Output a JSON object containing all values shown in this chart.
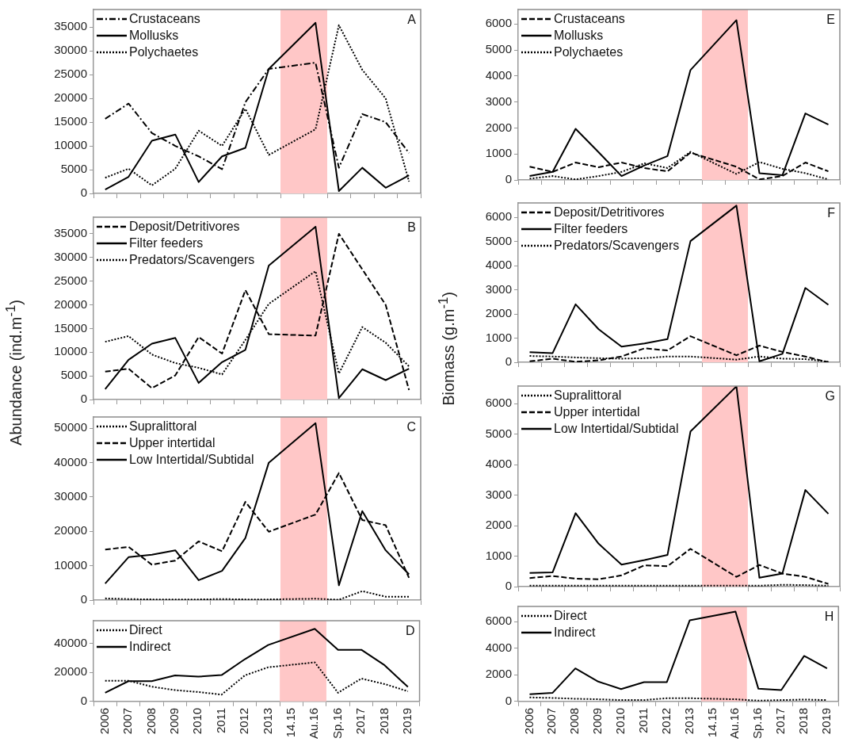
{
  "chart_data": [
    {
      "type": "line",
      "title": "A",
      "categories": [
        "2006",
        "2007",
        "2008",
        "2009",
        "2010",
        "2011",
        "2012",
        "2013",
        "14.15",
        "Au.16",
        "Sp.16",
        "2017",
        "2018",
        "2019"
      ],
      "series": [
        {
          "name": "Crustaceans",
          "color": "#000000",
          "line_style": "dashdot",
          "values": [
            15700,
            18900,
            12700,
            10000,
            7800,
            5100,
            19200,
            26200,
            null,
            27500,
            5400,
            16700,
            15000,
            8500
          ]
        },
        {
          "name": "Mollusks",
          "color": "#000000",
          "line_style": "solid",
          "values": [
            800,
            3500,
            11100,
            12400,
            2400,
            7800,
            9600,
            26200,
            null,
            35900,
            500,
            5400,
            1200,
            3800
          ]
        },
        {
          "name": "Polychaetes",
          "color": "#000000",
          "line_style": "dotted",
          "values": [
            3300,
            5200,
            1700,
            5200,
            13200,
            10000,
            17800,
            8100,
            null,
            13500,
            35400,
            26000,
            20000,
            2500
          ]
        }
      ],
      "ylim": [
        0,
        38700
      ],
      "yticks": [
        0,
        5000,
        10000,
        15000,
        20000,
        25000,
        30000,
        35000
      ],
      "legend": "top left",
      "marker": "none",
      "tick_labels": "y",
      "bands": [
        {
          "axis": "x",
          "from": "14.15",
          "to": "Au.16",
          "color": "#ffc7c7"
        }
      ]
    },
    {
      "type": "line",
      "title": "B",
      "ylabel": "Abundance (ind.m$^{-1}$)",
      "categories": [
        "2006",
        "2007",
        "2008",
        "2009",
        "2010",
        "2011",
        "2012",
        "2013",
        "14.15",
        "Au.16",
        "Sp.16",
        "2017",
        "2018",
        "2019"
      ],
      "series": [
        {
          "name": "Deposit/Detritivores",
          "color": "#000000",
          "line_style": "dashed",
          "values": [
            5900,
            6500,
            2400,
            5100,
            13200,
            9700,
            23100,
            13800,
            null,
            13500,
            35000,
            27500,
            20000,
            2000
          ]
        },
        {
          "name": "Filter feeders",
          "color": "#000000",
          "line_style": "solid",
          "values": [
            2200,
            8400,
            11800,
            13000,
            3500,
            7900,
            10500,
            28300,
            null,
            36500,
            300,
            6400,
            4100,
            6500
          ]
        },
        {
          "name": "Predators/Scavengers",
          "color": "#000000",
          "line_style": "dotted",
          "values": [
            12200,
            13400,
            9500,
            7700,
            6700,
            5300,
            12600,
            20200,
            null,
            27100,
            5500,
            15300,
            12000,
            7000
          ]
        }
      ],
      "ylim": [
        0,
        38500
      ],
      "yticks": [
        0,
        5000,
        10000,
        15000,
        20000,
        25000,
        30000,
        35000
      ],
      "legend": "top left",
      "marker": "none",
      "tick_labels": "y",
      "bands": [
        {
          "axis": "x",
          "from": "14.15",
          "to": "Au.16",
          "color": "#ffc7c7"
        }
      ]
    },
    {
      "type": "line",
      "title": "C",
      "categories": [
        "2006",
        "2007",
        "2008",
        "2009",
        "2010",
        "2011",
        "2012",
        "2013",
        "14.15",
        "Au.16",
        "Sp.16",
        "2017",
        "2018",
        "2019"
      ],
      "series": [
        {
          "name": "Supralittoral",
          "color": "#000000",
          "line_style": "dotted",
          "values": [
            500,
            300,
            200,
            200,
            200,
            300,
            200,
            200,
            null,
            400,
            100,
            2600,
            1000,
            1000
          ]
        },
        {
          "name": "Upper intertidal",
          "color": "#000000",
          "line_style": "dashed",
          "values": [
            14700,
            15500,
            10300,
            11500,
            17100,
            14200,
            28600,
            19900,
            null,
            24900,
            37000,
            23300,
            21800,
            6500
          ]
        },
        {
          "name": "Low Intertidal/Subtidal",
          "color": "#000000",
          "line_style": "solid",
          "values": [
            4800,
            12500,
            13200,
            14500,
            5800,
            8500,
            18100,
            40000,
            null,
            51500,
            4300,
            25900,
            14500,
            7500
          ]
        }
      ],
      "ylim": [
        0,
        53300
      ],
      "yticks": [
        0,
        10000,
        20000,
        30000,
        40000,
        50000
      ],
      "legend": "top left",
      "marker": "none",
      "tick_labels": "y",
      "bands": [
        {
          "axis": "x",
          "from": "14.15",
          "to": "Au.16",
          "color": "#ffc7c7"
        }
      ]
    },
    {
      "type": "line",
      "title": "D",
      "categories": [
        "2006",
        "2007",
        "2008",
        "2009",
        "2010",
        "2011",
        "2012",
        "2013",
        "14.15",
        "Au.16",
        "Sp.16",
        "2017",
        "2018",
        "2019"
      ],
      "series": [
        {
          "name": "Direct",
          "color": "#000000",
          "line_style": "dotted",
          "values": [
            14300,
            14300,
            10200,
            7800,
            6500,
            4700,
            18000,
            23600,
            null,
            27000,
            6000,
            15800,
            12000,
            7000
          ]
        },
        {
          "name": "Indirect",
          "color": "#000000",
          "line_style": "solid",
          "values": [
            6000,
            14000,
            14000,
            18000,
            17100,
            18200,
            29200,
            39000,
            null,
            50200,
            35700,
            35700,
            25000,
            10000
          ]
        }
      ],
      "ylim": [
        0,
        55800
      ],
      "yticks": [
        0,
        20000,
        40000
      ],
      "legend": "top left",
      "marker": "none",
      "bands": [
        {
          "axis": "x",
          "from": "14.15",
          "to": "Au.16",
          "color": "#ffc7c7"
        }
      ]
    },
    {
      "type": "line",
      "title": "E",
      "categories": [
        "2006",
        "2007",
        "2008",
        "2009",
        "2010",
        "2011",
        "2012",
        "2013",
        "14.15",
        "Au.16",
        "Sp.16",
        "2017",
        "2018",
        "2019"
      ],
      "series": [
        {
          "name": "Crustaceans",
          "color": "#000000",
          "line_style": "dashed",
          "values": [
            510,
            310,
            670,
            490,
            670,
            460,
            330,
            1050,
            null,
            510,
            20,
            150,
            670,
            330
          ]
        },
        {
          "name": "Mollusks",
          "color": "#000000",
          "line_style": "solid",
          "values": [
            150,
            310,
            1970,
            1070,
            150,
            560,
            920,
            4230,
            null,
            6150,
            260,
            180,
            2560,
            2130
          ]
        },
        {
          "name": "Polychaetes",
          "color": "#000000",
          "line_style": "dotted",
          "values": [
            50,
            150,
            20,
            150,
            310,
            640,
            460,
            1080,
            null,
            230,
            690,
            430,
            260,
            20
          ]
        }
      ],
      "ylim": [
        0,
        6560
      ],
      "yticks": [
        0,
        1000,
        2000,
        3000,
        4000,
        5000,
        6000
      ],
      "legend": "top left",
      "marker": "none",
      "tick_labels": "y",
      "bands": [
        {
          "axis": "x",
          "from": "14.15",
          "to": "Au.16",
          "color": "#ffc7c7"
        }
      ]
    },
    {
      "type": "line",
      "title": "F",
      "ylabel": "Biomass (g.m$^{-1}$)",
      "categories": [
        "2006",
        "2007",
        "2008",
        "2009",
        "2010",
        "2011",
        "2012",
        "2013",
        "14.15",
        "Au.16",
        "Sp.16",
        "2017",
        "2018",
        "2019"
      ],
      "series": [
        {
          "name": "Deposit/Detritivores",
          "color": "#000000",
          "line_style": "dashed",
          "values": [
            40,
            150,
            20,
            80,
            240,
            580,
            490,
            1080,
            null,
            290,
            690,
            430,
            240,
            0
          ]
        },
        {
          "name": "Filter feeders",
          "color": "#000000",
          "line_style": "solid",
          "values": [
            420,
            380,
            2400,
            1370,
            650,
            780,
            960,
            5020,
            null,
            6490,
            40,
            350,
            3080,
            2380
          ]
        },
        {
          "name": "Predators/Scavengers",
          "color": "#000000",
          "line_style": "dotted",
          "values": [
            260,
            240,
            200,
            170,
            150,
            170,
            240,
            240,
            null,
            110,
            240,
            150,
            130,
            20
          ]
        }
      ],
      "ylim": [
        0,
        6600
      ],
      "yticks": [
        0,
        1000,
        2000,
        3000,
        4000,
        5000,
        6000
      ],
      "legend": "top left",
      "marker": "none",
      "tick_labels": "y",
      "bands": [
        {
          "axis": "x",
          "from": "14.15",
          "to": "Au.16",
          "color": "#ffc7c7"
        }
      ]
    },
    {
      "type": "line",
      "title": "G",
      "categories": [
        "2006",
        "2007",
        "2008",
        "2009",
        "2010",
        "2011",
        "2012",
        "2013",
        "14.15",
        "Au.16",
        "Sp.16",
        "2017",
        "2018",
        "2019"
      ],
      "series": [
        {
          "name": "Supralittoral",
          "color": "#000000",
          "line_style": "dotted",
          "values": [
            30,
            30,
            30,
            30,
            30,
            30,
            30,
            30,
            null,
            30,
            30,
            60,
            50,
            30
          ]
        },
        {
          "name": "Upper intertidal",
          "color": "#000000",
          "line_style": "dashed",
          "values": [
            280,
            350,
            260,
            240,
            370,
            700,
            670,
            1240,
            null,
            320,
            710,
            430,
            320,
            90
          ]
        },
        {
          "name": "Low Intertidal/Subtidal",
          "color": "#000000",
          "line_style": "solid",
          "values": [
            450,
            470,
            2410,
            1410,
            720,
            870,
            1040,
            5090,
            null,
            6570,
            290,
            430,
            3170,
            2390
          ]
        }
      ],
      "ylim": [
        0,
        6580
      ],
      "yticks": [
        0,
        1000,
        2000,
        3000,
        4000,
        5000,
        6000
      ],
      "legend": "top left",
      "marker": "none",
      "tick_labels": "y",
      "bands": [
        {
          "axis": "x",
          "from": "14.15",
          "to": "Au.16",
          "color": "#ffc7c7"
        }
      ]
    },
    {
      "type": "line",
      "title": "H",
      "categories": [
        "2006",
        "2007",
        "2008",
        "2009",
        "2010",
        "2011",
        "2012",
        "2013",
        "14.15",
        "Au.16",
        "Sp.16",
        "2017",
        "2018",
        "2019"
      ],
      "series": [
        {
          "name": "Direct",
          "color": "#000000",
          "line_style": "dotted",
          "values": [
            300,
            260,
            200,
            160,
            100,
            100,
            240,
            240,
            null,
            160,
            60,
            100,
            140,
            100
          ]
        },
        {
          "name": "Indirect",
          "color": "#000000",
          "line_style": "solid",
          "values": [
            540,
            640,
            2480,
            1490,
            930,
            1450,
            1450,
            6100,
            null,
            6750,
            950,
            850,
            3420,
            2480
          ]
        }
      ],
      "ylim": [
        0,
        7140
      ],
      "yticks": [
        0,
        2000,
        4000,
        6000
      ],
      "legend": "top left",
      "marker": "none",
      "bands": [
        {
          "axis": "x",
          "from": "14.15",
          "to": "Au.16",
          "color": "#ffc7c7"
        }
      ]
    }
  ]
}
